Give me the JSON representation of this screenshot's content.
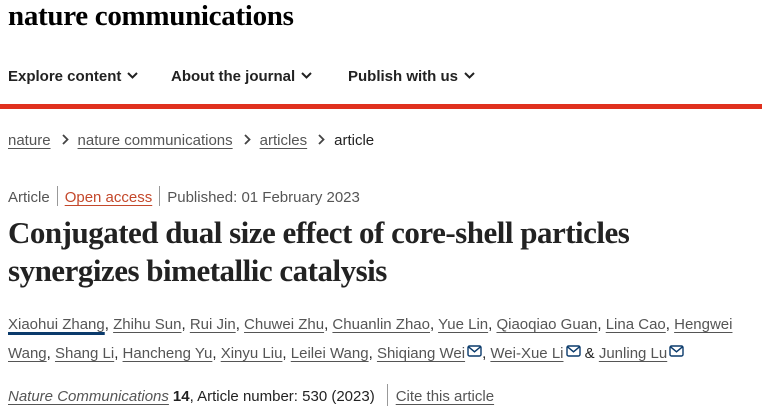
{
  "site": {
    "logo": "nature communications"
  },
  "nav": {
    "items": [
      {
        "label": "Explore content"
      },
      {
        "label": "About the journal"
      },
      {
        "label": "Publish with us"
      }
    ]
  },
  "colors": {
    "accent": "#e0301e",
    "link": "#555555",
    "open_access": "#c4482b",
    "first_author_underline": "#0a3a6b"
  },
  "breadcrumb": [
    "nature",
    "nature communications",
    "articles",
    "article"
  ],
  "meta": {
    "type": "Article",
    "access": "Open access",
    "published": "Published: 01 February 2023"
  },
  "title": "Conjugated dual size effect of core-shell particles synergizes bimetallic catalysis",
  "authors": [
    "Xiaohui Zhang",
    "Zhihu Sun",
    "Rui Jin",
    "Chuwei Zhu",
    "Chuanlin Zhao",
    "Yue Lin",
    "Qiaoqiao Guan",
    "Lina Cao",
    "Hengwei Wang",
    "Shang Li",
    "Hancheng Yu",
    "Xinyu Liu",
    "Leilei Wang",
    "Shiqiang Wei",
    "Wei-Xue Li",
    "Junling Lu"
  ],
  "author_separator": ", ",
  "author_last_separator": " & ",
  "citation": {
    "journal": "Nature Communications",
    "volume": "14",
    "article_number": ", Article number: 530 (2023)",
    "cite_label": "Cite this article"
  }
}
